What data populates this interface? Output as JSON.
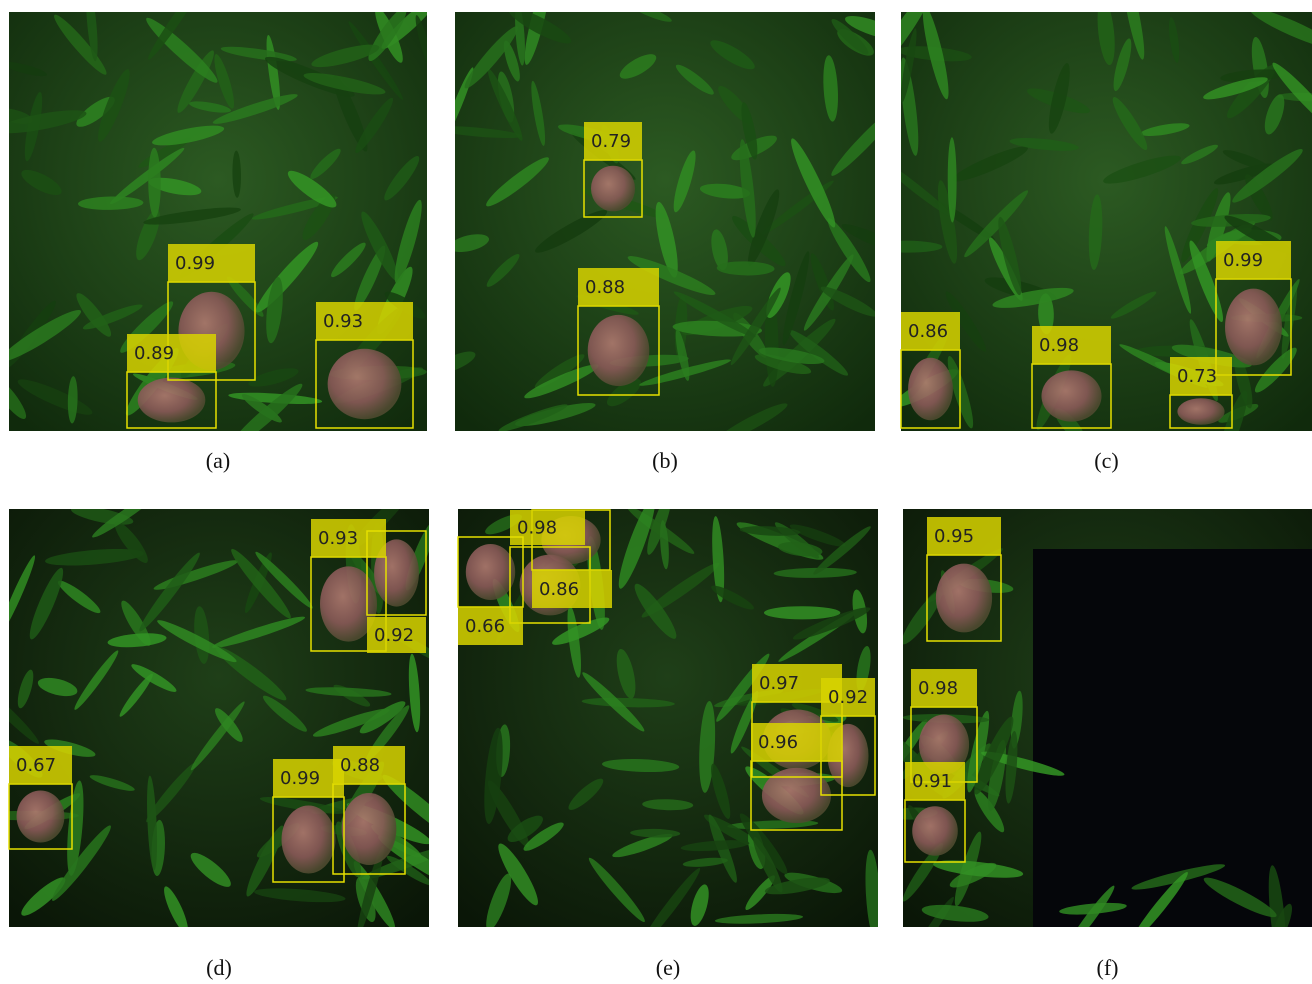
{
  "panels": [
    {
      "caption": "(a)",
      "scores": [
        "0.99",
        "0.89",
        "0.93"
      ]
    },
    {
      "caption": "(b)",
      "scores": [
        "0.79",
        "0.88"
      ]
    },
    {
      "caption": "(c)",
      "scores": [
        "0.86",
        "0.98",
        "0.99",
        "0.73"
      ]
    },
    {
      "caption": "(d)",
      "scores": [
        "0.93",
        "0.92",
        "0.67",
        "0.99",
        "0.88"
      ]
    },
    {
      "caption": "(e)",
      "scores": [
        "0.98",
        "0.86",
        "0.66",
        "0.97",
        "0.92",
        "0.96"
      ]
    },
    {
      "caption": "(f)",
      "scores": [
        "0.95",
        "0.98",
        "0.91"
      ]
    }
  ]
}
